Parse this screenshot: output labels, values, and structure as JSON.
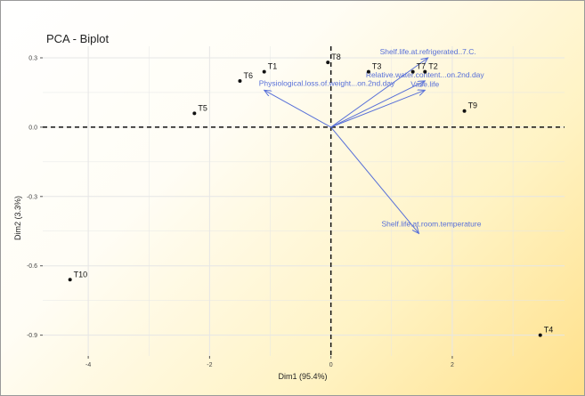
{
  "chart_data": {
    "type": "scatter",
    "title": "PCA - Biplot",
    "xlabel": "Dim1 (95.4%)",
    "ylabel": "Dim2 (3.3%)",
    "xlim": [
      -4.75,
      3.85
    ],
    "ylim": [
      -0.99,
      0.35
    ],
    "x_ticks": [
      {
        "v": -4,
        "label": "-4"
      },
      {
        "v": -2,
        "label": "-2"
      },
      {
        "v": 0,
        "label": "0"
      },
      {
        "v": 2,
        "label": "2"
      }
    ],
    "y_ticks": [
      {
        "v": 0.3,
        "label": "0.3"
      },
      {
        "v": 0.0,
        "label": "0.0"
      },
      {
        "v": -0.3,
        "label": "-0.3"
      },
      {
        "v": -0.6,
        "label": "-0.6"
      },
      {
        "v": -0.9,
        "label": "-0.9"
      }
    ],
    "grid": true,
    "points": [
      {
        "label": "T1",
        "x": -1.1,
        "y": 0.24
      },
      {
        "label": "T2",
        "x": 1.55,
        "y": 0.24
      },
      {
        "label": "T3",
        "x": 0.62,
        "y": 0.24
      },
      {
        "label": "T4",
        "x": 3.45,
        "y": -0.9
      },
      {
        "label": "T5",
        "x": -2.25,
        "y": 0.06
      },
      {
        "label": "T6",
        "x": -1.5,
        "y": 0.2
      },
      {
        "label": "T7",
        "x": 1.35,
        "y": 0.24
      },
      {
        "label": "T8",
        "x": -0.05,
        "y": 0.28
      },
      {
        "label": "T9",
        "x": 2.2,
        "y": 0.07
      },
      {
        "label": "T10",
        "x": -4.3,
        "y": -0.66
      }
    ],
    "variables": [
      {
        "name": "Shelf.life.at.refrigerated..7.C.",
        "x": 1.6,
        "y": 0.3
      },
      {
        "name": "Relative.water.content...on.2nd.day",
        "x": 1.55,
        "y": 0.2
      },
      {
        "name": "Vase.life",
        "x": 1.55,
        "y": 0.16
      },
      {
        "name": "Physiological.loss.of.weight...on.2nd.day",
        "x": -1.1,
        "y": 0.16
      },
      {
        "name": "Shelf.life.at.room.temperature",
        "x": 1.45,
        "y": -0.46
      }
    ],
    "colors": {
      "points": "#111111",
      "variables": "#5870d8",
      "zero_lines": "#111111",
      "grid": "#e6e6e6"
    }
  }
}
